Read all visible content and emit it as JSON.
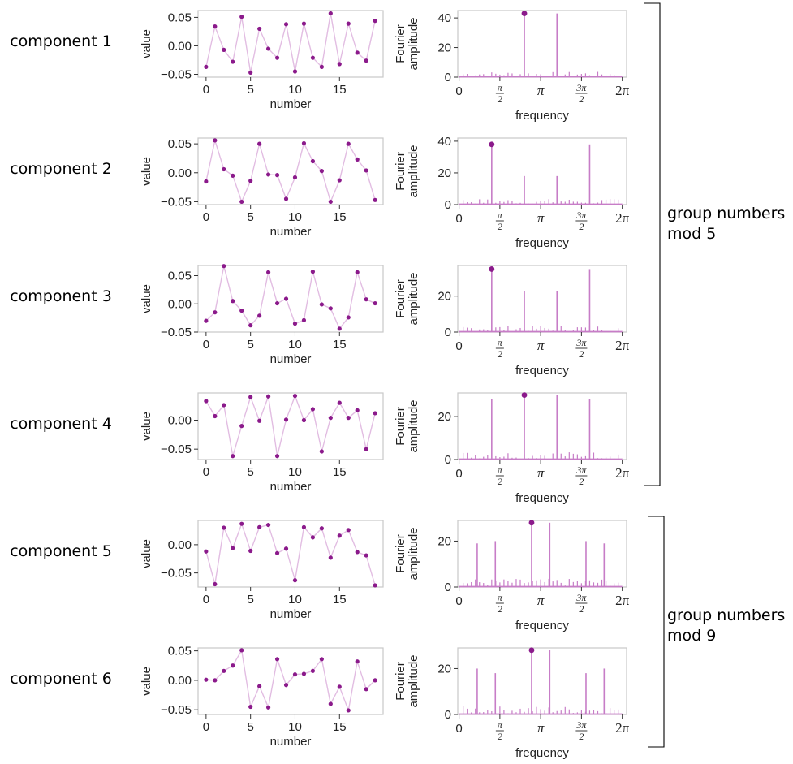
{
  "component_labels": [
    "component 1",
    "component 2",
    "component 3",
    "component 4",
    "component 5",
    "component 6"
  ],
  "brackets": [
    {
      "lines": [
        "group numbers",
        "mod 5"
      ]
    },
    {
      "lines": [
        "group numbers",
        "mod 9"
      ]
    }
  ],
  "colors": {
    "line": "#e2bde2",
    "point": "#8b1a8b",
    "spectrum": "#c77dc7",
    "axis": "#c8c8c8"
  },
  "chart_data": [
    {
      "type": "line",
      "title": "",
      "xlabel": "number",
      "ylabel": "value",
      "ylim": [
        -0.055,
        0.062
      ],
      "yticks": [
        -0.05,
        0.0,
        0.05
      ],
      "ytick_labels": [
        "−0.05",
        "0.00",
        "0.05"
      ],
      "xticks": [
        0,
        5,
        10,
        15
      ],
      "xtick_labels": [
        "0",
        "5",
        "10",
        "15"
      ],
      "x": [
        0,
        1,
        2,
        3,
        4,
        5,
        6,
        7,
        8,
        9,
        10,
        11,
        12,
        13,
        14,
        15,
        16,
        17,
        18,
        19
      ],
      "values": [
        -0.037,
        0.034,
        -0.007,
        -0.028,
        0.051,
        -0.047,
        0.03,
        -0.005,
        -0.021,
        0.038,
        -0.045,
        0.039,
        -0.021,
        -0.037,
        0.057,
        -0.032,
        0.039,
        -0.012,
        -0.026,
        0.044
      ]
    },
    {
      "type": "bar",
      "title": "",
      "xlabel": "frequency",
      "ylabel": "Fourier amplitude",
      "ylim": [
        0,
        45
      ],
      "yticks": [
        0,
        20,
        40
      ],
      "ytick_labels": [
        "0",
        "20",
        "40"
      ],
      "xlim": [
        0,
        6.2832
      ],
      "peaks": [
        {
          "x": 2.513,
          "y": 43
        },
        {
          "x": 3.77,
          "y": 43
        }
      ],
      "highlight": {
        "x": 2.513,
        "y": 43
      }
    },
    {
      "type": "line",
      "title": "",
      "xlabel": "number",
      "ylabel": "value",
      "ylim": [
        -0.055,
        0.06
      ],
      "yticks": [
        -0.05,
        0.0,
        0.05
      ],
      "ytick_labels": [
        "−0.05",
        "0.00",
        "0.05"
      ],
      "xticks": [
        0,
        5,
        10,
        15
      ],
      "xtick_labels": [
        "0",
        "5",
        "10",
        "15"
      ],
      "x": [
        0,
        1,
        2,
        3,
        4,
        5,
        6,
        7,
        8,
        9,
        10,
        11,
        12,
        13,
        14,
        15,
        16,
        17,
        18,
        19
      ],
      "values": [
        -0.015,
        0.056,
        0.006,
        -0.005,
        -0.05,
        -0.014,
        0.05,
        -0.003,
        -0.004,
        -0.045,
        -0.008,
        0.051,
        0.02,
        0.003,
        -0.05,
        -0.013,
        0.05,
        0.023,
        0.004,
        -0.047
      ]
    },
    {
      "type": "bar",
      "title": "",
      "xlabel": "frequency",
      "ylabel": "Fourier amplitude",
      "ylim": [
        0,
        42
      ],
      "yticks": [
        0,
        20,
        40
      ],
      "ytick_labels": [
        "0",
        "20",
        "40"
      ],
      "xlim": [
        0,
        6.2832
      ],
      "peaks": [
        {
          "x": 1.257,
          "y": 38
        },
        {
          "x": 2.513,
          "y": 18
        },
        {
          "x": 3.77,
          "y": 18
        },
        {
          "x": 5.027,
          "y": 38
        }
      ],
      "highlight": {
        "x": 1.257,
        "y": 38
      }
    },
    {
      "type": "line",
      "title": "",
      "xlabel": "number",
      "ylabel": "value",
      "ylim": [
        -0.05,
        0.068
      ],
      "yticks": [
        -0.05,
        0.0,
        0.05
      ],
      "ytick_labels": [
        "−0.05",
        "0.00",
        "0.05"
      ],
      "xticks": [
        0,
        5,
        10,
        15
      ],
      "xtick_labels": [
        "0",
        "5",
        "10",
        "15"
      ],
      "x": [
        0,
        1,
        2,
        3,
        4,
        5,
        6,
        7,
        8,
        9,
        10,
        11,
        12,
        13,
        14,
        15,
        16,
        17,
        18,
        19
      ],
      "values": [
        -0.03,
        -0.015,
        0.067,
        0.005,
        -0.012,
        -0.038,
        -0.021,
        0.056,
        0.001,
        0.009,
        -0.035,
        -0.029,
        0.057,
        -0.001,
        -0.008,
        -0.044,
        -0.024,
        0.056,
        0.008,
        0.001
      ]
    },
    {
      "type": "bar",
      "title": "",
      "xlabel": "frequency",
      "ylabel": "Fourier amplitude",
      "ylim": [
        0,
        37
      ],
      "yticks": [
        0,
        20
      ],
      "ytick_labels": [
        "0",
        "20"
      ],
      "xlim": [
        0,
        6.2832
      ],
      "peaks": [
        {
          "x": 1.257,
          "y": 35
        },
        {
          "x": 2.513,
          "y": 23
        },
        {
          "x": 3.77,
          "y": 23
        },
        {
          "x": 5.027,
          "y": 35
        }
      ],
      "highlight": {
        "x": 1.257,
        "y": 35
      }
    },
    {
      "type": "line",
      "title": "",
      "xlabel": "number",
      "ylabel": "value",
      "ylim": [
        -0.068,
        0.047
      ],
      "yticks": [
        -0.05,
        0.0
      ],
      "ytick_labels": [
        "−0.05",
        "0.00"
      ],
      "xticks": [
        0,
        5,
        10,
        15
      ],
      "xtick_labels": [
        "0",
        "5",
        "10",
        "15"
      ],
      "x": [
        0,
        1,
        2,
        3,
        4,
        5,
        6,
        7,
        8,
        9,
        10,
        11,
        12,
        13,
        14,
        15,
        16,
        17,
        18,
        19
      ],
      "values": [
        0.033,
        0.007,
        0.026,
        -0.062,
        -0.01,
        0.04,
        -0.001,
        0.041,
        -0.062,
        0.001,
        0.042,
        0.0,
        0.019,
        -0.054,
        0.004,
        0.03,
        0.004,
        0.017,
        -0.05,
        0.012
      ]
    },
    {
      "type": "bar",
      "title": "",
      "xlabel": "frequency",
      "ylabel": "Fourier amplitude",
      "ylim": [
        0,
        31
      ],
      "yticks": [
        0,
        20
      ],
      "ytick_labels": [
        "0",
        "20"
      ],
      "xlim": [
        0,
        6.2832
      ],
      "peaks": [
        {
          "x": 1.257,
          "y": 28
        },
        {
          "x": 2.513,
          "y": 30
        },
        {
          "x": 3.77,
          "y": 30
        },
        {
          "x": 5.027,
          "y": 28
        }
      ],
      "highlight": {
        "x": 2.513,
        "y": 30
      }
    },
    {
      "type": "line",
      "title": "",
      "xlabel": "number",
      "ylabel": "value",
      "ylim": [
        -0.075,
        0.043
      ],
      "yticks": [
        -0.05,
        0.0
      ],
      "ytick_labels": [
        "−0.05",
        "0.00"
      ],
      "xticks": [
        0,
        5,
        10,
        15
      ],
      "xtick_labels": [
        "0",
        "5",
        "10",
        "15"
      ],
      "x": [
        0,
        1,
        2,
        3,
        4,
        5,
        6,
        7,
        8,
        9,
        10,
        11,
        12,
        13,
        14,
        15,
        16,
        17,
        18,
        19
      ],
      "values": [
        -0.012,
        -0.07,
        0.03,
        -0.006,
        0.037,
        -0.011,
        0.031,
        0.035,
        -0.015,
        -0.007,
        -0.063,
        0.031,
        0.013,
        0.029,
        -0.023,
        0.016,
        0.026,
        -0.013,
        -0.019,
        -0.072
      ]
    },
    {
      "type": "bar",
      "title": "",
      "xlabel": "frequency",
      "ylabel": "Fourier amplitude",
      "ylim": [
        0,
        29
      ],
      "yticks": [
        0,
        20
      ],
      "ytick_labels": [
        "0",
        "20"
      ],
      "xlim": [
        0,
        6.2832
      ],
      "peaks": [
        {
          "x": 0.698,
          "y": 19
        },
        {
          "x": 1.396,
          "y": 20
        },
        {
          "x": 2.793,
          "y": 28
        },
        {
          "x": 3.491,
          "y": 28
        },
        {
          "x": 4.887,
          "y": 20
        },
        {
          "x": 5.585,
          "y": 19
        }
      ],
      "highlight": {
        "x": 2.793,
        "y": 28
      }
    },
    {
      "type": "line",
      "title": "",
      "xlabel": "number",
      "ylabel": "value",
      "ylim": [
        -0.058,
        0.055
      ],
      "yticks": [
        -0.05,
        0.0,
        0.05
      ],
      "ytick_labels": [
        "−0.05",
        "0.00",
        "0.05"
      ],
      "xticks": [
        0,
        5,
        10,
        15
      ],
      "xtick_labels": [
        "0",
        "5",
        "10",
        "15"
      ],
      "x": [
        0,
        1,
        2,
        3,
        4,
        5,
        6,
        7,
        8,
        9,
        10,
        11,
        12,
        13,
        14,
        15,
        16,
        17,
        18,
        19
      ],
      "values": [
        0.001,
        0.0,
        0.016,
        0.025,
        0.051,
        -0.045,
        -0.01,
        -0.046,
        0.036,
        -0.008,
        0.01,
        0.011,
        0.016,
        0.036,
        -0.04,
        -0.011,
        -0.051,
        0.032,
        -0.015,
        0.0
      ]
    },
    {
      "type": "bar",
      "title": "",
      "xlabel": "frequency",
      "ylabel": "Fourier amplitude",
      "ylim": [
        0,
        29
      ],
      "yticks": [
        0,
        20
      ],
      "ytick_labels": [
        "0",
        "20"
      ],
      "xlim": [
        0,
        6.2832
      ],
      "peaks": [
        {
          "x": 0.698,
          "y": 20
        },
        {
          "x": 1.396,
          "y": 18
        },
        {
          "x": 2.793,
          "y": 28
        },
        {
          "x": 3.491,
          "y": 28
        },
        {
          "x": 4.887,
          "y": 18
        },
        {
          "x": 5.585,
          "y": 20
        }
      ],
      "highlight": {
        "x": 2.793,
        "y": 28
      }
    }
  ]
}
